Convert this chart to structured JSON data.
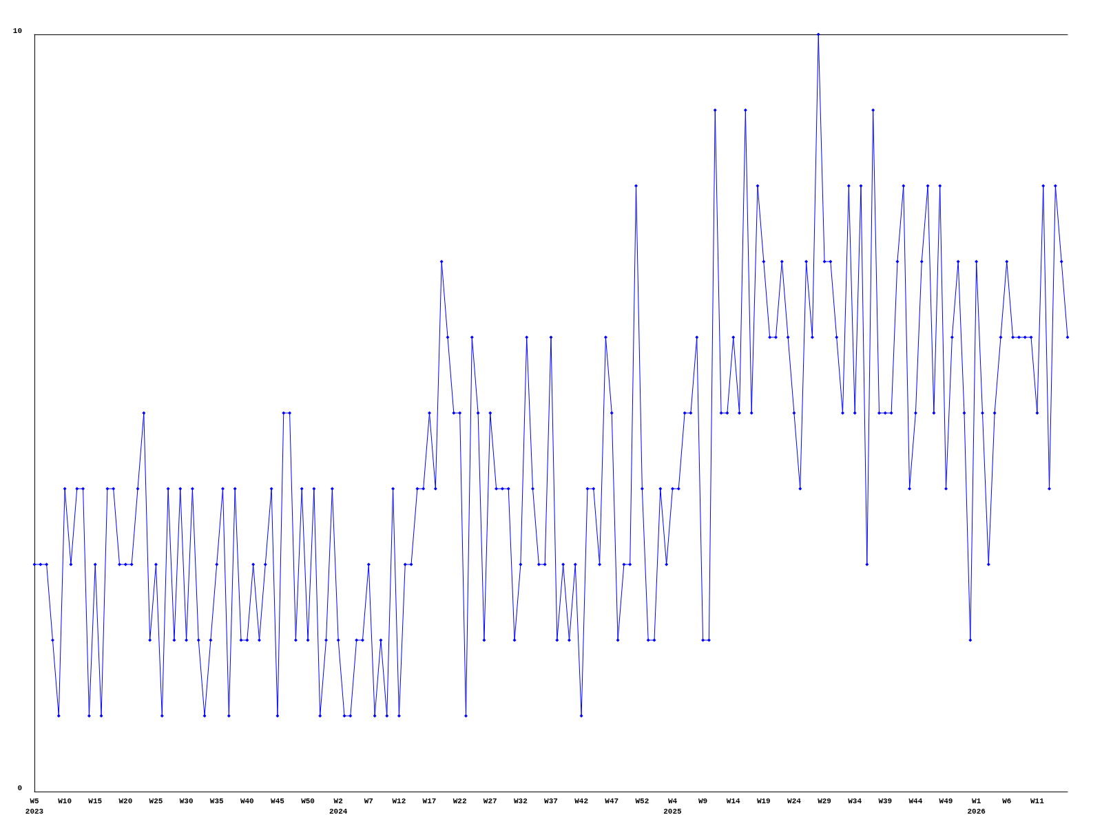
{
  "chart_data": {
    "type": "line",
    "categories": [
      "W5\n2023",
      null,
      null,
      null,
      null,
      "W10",
      null,
      null,
      null,
      null,
      "W15",
      null,
      null,
      null,
      null,
      "W20",
      null,
      null,
      null,
      null,
      "W25",
      null,
      null,
      null,
      null,
      "W30",
      null,
      null,
      null,
      null,
      "W35",
      null,
      null,
      null,
      null,
      "W40",
      null,
      null,
      null,
      null,
      "W45",
      null,
      null,
      null,
      null,
      "W50",
      null,
      null,
      null,
      null,
      "W2\n2024",
      null,
      null,
      null,
      null,
      "W7",
      null,
      null,
      null,
      null,
      "W12",
      null,
      null,
      null,
      null,
      "W17",
      null,
      null,
      null,
      null,
      "W22",
      null,
      null,
      null,
      null,
      "W27",
      null,
      null,
      null,
      null,
      "W32",
      null,
      null,
      null,
      null,
      "W37",
      null,
      null,
      null,
      null,
      "W42",
      null,
      null,
      null,
      null,
      "W47",
      null,
      null,
      null,
      null,
      "W52",
      null,
      null,
      null,
      null,
      "W4\n2025",
      null,
      null,
      null,
      null,
      "W9",
      null,
      null,
      null,
      null,
      "W14",
      null,
      null,
      null,
      null,
      "W19",
      null,
      null,
      null,
      null,
      "W24",
      null,
      null,
      null,
      null,
      "W29",
      null,
      null,
      null,
      null,
      "W34",
      null,
      null,
      null,
      null,
      "W39",
      null,
      null,
      null,
      null,
      "W44",
      null,
      null,
      null,
      null,
      "W49",
      null,
      null,
      null,
      null,
      "W1\n2026",
      null,
      null,
      null,
      null,
      "W6",
      null,
      null,
      null,
      null,
      "W11",
      null,
      null,
      null,
      null,
      null
    ],
    "series": [
      {
        "color": "#0000ff",
        "values": [
          3,
          3,
          3,
          2,
          1,
          4,
          3,
          4,
          4,
          1,
          3,
          1,
          4,
          4,
          3,
          3,
          3,
          4,
          5,
          2,
          3,
          1,
          4,
          2,
          4,
          2,
          4,
          2,
          1,
          2,
          3,
          4,
          1,
          4,
          2,
          2,
          3,
          2,
          3,
          4,
          1,
          5,
          5,
          2,
          4,
          2,
          4,
          1,
          2,
          4,
          2,
          1,
          1,
          2,
          2,
          3,
          1,
          2,
          1,
          4,
          1,
          3,
          3,
          4,
          4,
          5,
          4,
          7,
          6,
          5,
          5,
          1,
          6,
          5,
          2,
          5,
          4,
          4,
          4,
          2,
          3,
          6,
          4,
          3,
          3,
          6,
          2,
          3,
          2,
          3,
          1,
          4,
          4,
          3,
          6,
          5,
          2,
          3,
          3,
          8,
          4,
          2,
          2,
          4,
          3,
          4,
          4,
          5,
          5,
          6,
          2,
          2,
          9,
          5,
          5,
          6,
          5,
          9,
          5,
          8,
          7,
          6,
          6,
          7,
          6,
          5,
          4,
          7,
          6,
          10,
          7,
          7,
          6,
          5,
          8,
          5,
          8,
          3,
          9,
          5,
          5,
          5,
          7,
          8,
          4,
          5,
          7,
          8,
          5,
          8,
          4,
          6,
          7,
          5,
          2,
          7,
          5,
          3,
          5,
          6,
          7,
          6,
          6,
          6,
          6,
          5,
          8,
          4,
          8,
          7,
          6
        ]
      }
    ],
    "ylim": [
      0,
      10
    ],
    "yticks": [
      0,
      10
    ],
    "grid": false,
    "marker": "diamond",
    "line_style": "solid"
  }
}
